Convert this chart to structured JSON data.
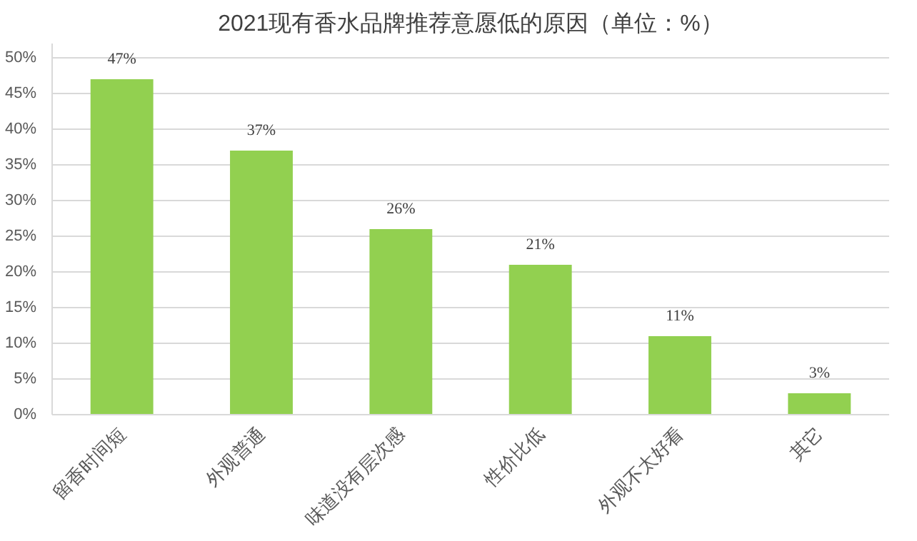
{
  "chart_data": {
    "type": "bar",
    "title": "2021现有香水品牌推荐意愿低的原因（单位：%）",
    "categories": [
      "留香时间短",
      "外观普通",
      "味道没有层次感",
      "性价比低",
      "外观不太好看",
      "其它"
    ],
    "values": [
      47,
      37,
      26,
      21,
      11,
      3
    ],
    "value_labels": [
      "47%",
      "37%",
      "26%",
      "21%",
      "11%",
      "3%"
    ],
    "color": "#92d050",
    "ylim": [
      0,
      52
    ],
    "yticks": [
      {
        "value": 0,
        "label": "0%"
      },
      {
        "value": 5,
        "label": "5%"
      },
      {
        "value": 10,
        "label": "10%"
      },
      {
        "value": 15,
        "label": "15%"
      },
      {
        "value": 20,
        "label": "20%"
      },
      {
        "value": 25,
        "label": "25%"
      },
      {
        "value": 30,
        "label": "30%"
      },
      {
        "value": 35,
        "label": "35%"
      },
      {
        "value": 40,
        "label": "40%"
      },
      {
        "value": 45,
        "label": "45%"
      },
      {
        "value": 50,
        "label": "50%"
      }
    ],
    "grid": "y"
  }
}
